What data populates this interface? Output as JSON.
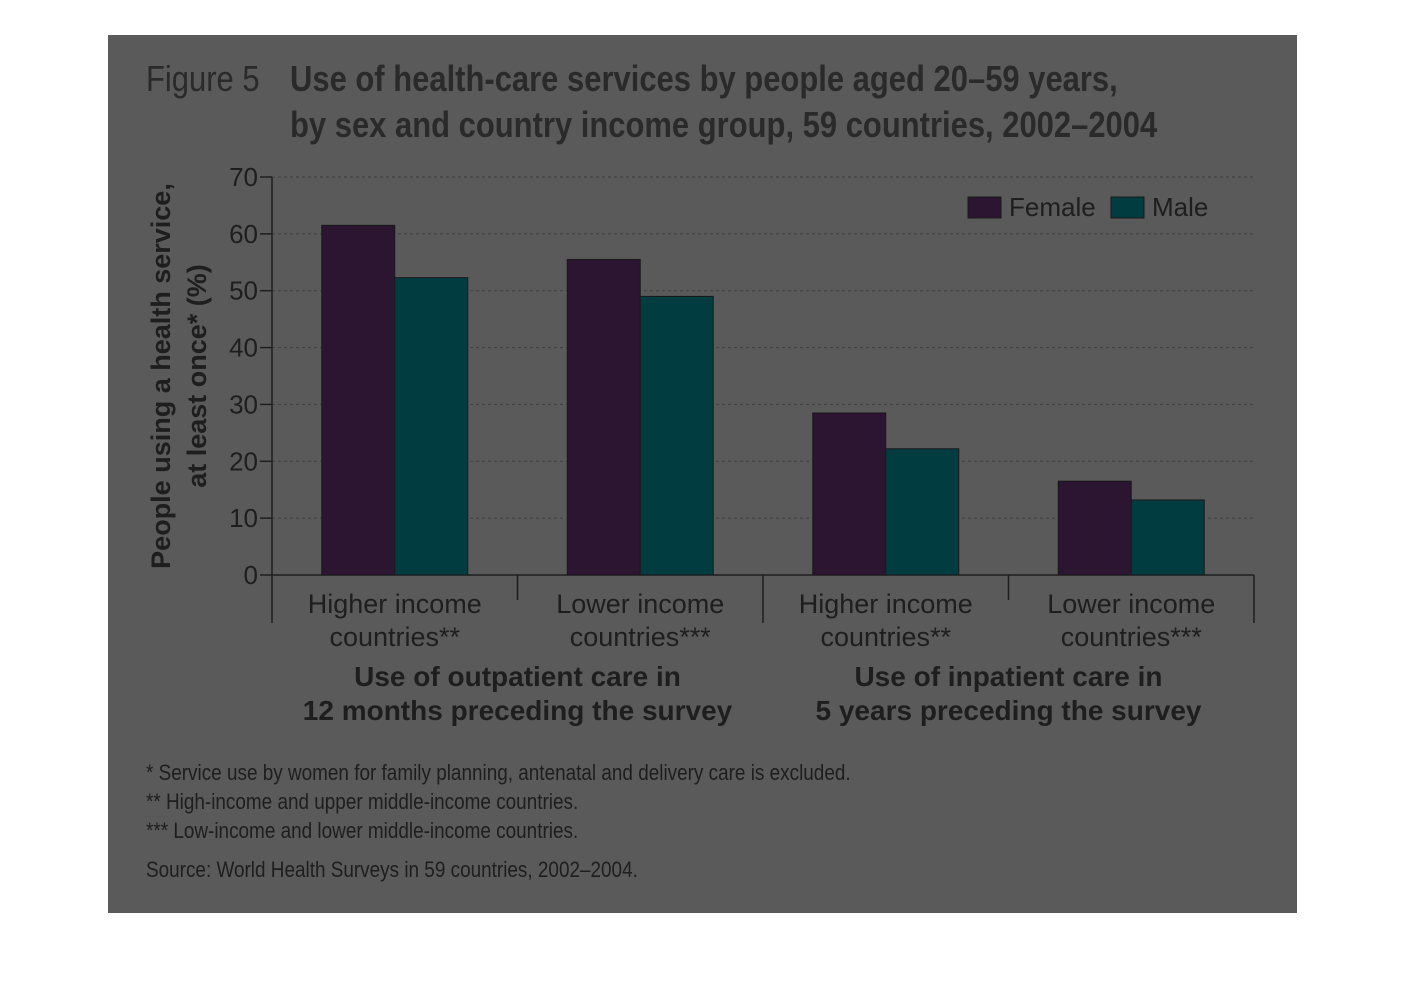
{
  "figure_label": "Figure 5",
  "title_line_1": "Use of health-care services by people aged 20–59 years,",
  "title_line_2": "by sex and country income group, 59 countries, 2002–2004",
  "colors": {
    "panel": "#5a5a5a",
    "female": "#2b1530",
    "male": "#003c40",
    "text": "#1e1e1e"
  },
  "chart_data": {
    "type": "bar",
    "title": "Use of health-care services by people aged 20–59 years, by sex and country income group, 59 countries, 2002–2004",
    "ylabel_line_1": "People using a health service,",
    "ylabel_line_2": "at least once* (%)",
    "ylim": [
      0,
      70
    ],
    "yticks": [
      "0",
      "10",
      "20",
      "30",
      "40",
      "50",
      "60",
      "70"
    ],
    "grid": true,
    "legend_position": "top-right",
    "categories_line_1": [
      "Higher income",
      "Lower income",
      "Higher income",
      "Lower income"
    ],
    "categories_line_2": [
      "countries**",
      "countries***",
      "countries**",
      "countries***"
    ],
    "groups": [
      {
        "line_1": "Use of outpatient care in",
        "line_2": "12 months preceding the survey"
      },
      {
        "line_1": "Use of inpatient care in",
        "line_2": "5 years preceding the survey"
      }
    ],
    "series": [
      {
        "name": "Female",
        "values": [
          61.5,
          55.5,
          28.5,
          16.5
        ]
      },
      {
        "name": "Male",
        "values": [
          52.3,
          49,
          22.2,
          13.2
        ]
      }
    ]
  },
  "notes": [
    "* Service use by women for family planning, antenatal and delivery care is excluded.",
    "** High-income and upper middle-income countries.",
    "*** Low-income and lower middle-income countries."
  ],
  "source": "Source: World Health Surveys in 59 countries, 2002–2004."
}
